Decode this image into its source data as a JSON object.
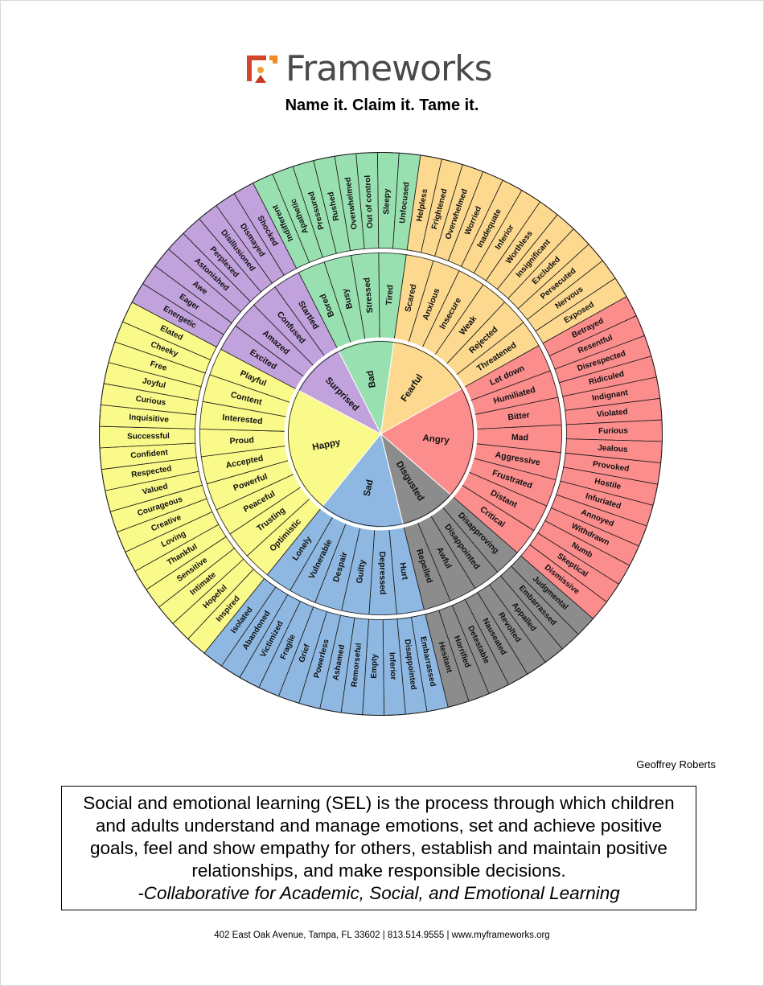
{
  "brand": {
    "name": "Frameworks",
    "tagline": "Name it. Claim it. Tame it."
  },
  "wheel": {
    "core_sectors": [
      {
        "label": "Bad",
        "color": "#99e0b1",
        "mid": [
          {
            "label": "Bored",
            "outer": [
              "Indifferent",
              "Apathetic"
            ]
          },
          {
            "label": "Busy",
            "outer": [
              "Pressured",
              "Rushed"
            ]
          },
          {
            "label": "Stressed",
            "outer": [
              "Overwhelmed",
              "Out of control"
            ]
          },
          {
            "label": "Tired",
            "outer": [
              "Sleepy",
              "Unfocused"
            ]
          }
        ]
      },
      {
        "label": "Fearful",
        "color": "#fcd98f",
        "mid": [
          {
            "label": "Scared",
            "outer": [
              "Helpless",
              "Frightened"
            ]
          },
          {
            "label": "Anxious",
            "outer": [
              "Overwhelmed",
              "Worried"
            ]
          },
          {
            "label": "Insecure",
            "outer": [
              "Inadequate",
              "Inferior"
            ]
          },
          {
            "label": "Weak",
            "outer": [
              "Worthless",
              "Insignificant"
            ]
          },
          {
            "label": "Rejected",
            "outer": [
              "Excluded",
              "Persecuted"
            ]
          },
          {
            "label": "Threatened",
            "outer": [
              "Nervous",
              "Exposed"
            ]
          }
        ]
      },
      {
        "label": "Angry",
        "color": "#fb8d8d",
        "mid": [
          {
            "label": "Let down",
            "outer": [
              "Betrayed",
              "Resentful"
            ]
          },
          {
            "label": "Humiliated",
            "outer": [
              "Disrespected",
              "Ridiculed"
            ]
          },
          {
            "label": "Bitter",
            "outer": [
              "Indignant",
              "Violated"
            ]
          },
          {
            "label": "Mad",
            "outer": [
              "Furious",
              "Jealous"
            ]
          },
          {
            "label": "Aggressive",
            "outer": [
              "Provoked",
              "Hostile"
            ]
          },
          {
            "label": "Frustrated",
            "outer": [
              "Infuriated",
              "Annoyed"
            ]
          },
          {
            "label": "Distant",
            "outer": [
              "Withdrawn",
              "Numb"
            ]
          },
          {
            "label": "Critical",
            "outer": [
              "Skeptical",
              "Dismissive"
            ]
          }
        ]
      },
      {
        "label": "Disgusted",
        "color": "#8c8c8c",
        "mid": [
          {
            "label": "Disapproving",
            "outer": [
              "Judgmental",
              "Embarrassed"
            ]
          },
          {
            "label": "Disappointed",
            "outer": [
              "Appalled",
              "Revolted"
            ]
          },
          {
            "label": "Awful",
            "outer": [
              "Nauseated",
              "Detestable"
            ]
          },
          {
            "label": "Repelled",
            "outer": [
              "Horrified",
              "Hesitant"
            ]
          }
        ]
      },
      {
        "label": "Sad",
        "color": "#8eb8e2",
        "mid": [
          {
            "label": "Hurt",
            "outer": [
              "Embarrassed",
              "Disappointed"
            ]
          },
          {
            "label": "Depressed",
            "outer": [
              "Inferior",
              "Empty"
            ]
          },
          {
            "label": "Guilty",
            "outer": [
              "Remorseful",
              "Ashamed"
            ]
          },
          {
            "label": "Despair",
            "outer": [
              "Powerless",
              "Grief"
            ]
          },
          {
            "label": "Vulnerable",
            "outer": [
              "Fragile",
              "Victimized"
            ]
          },
          {
            "label": "Lonely",
            "outer": [
              "Abandoned",
              "Isolated"
            ]
          }
        ]
      },
      {
        "label": "Happy",
        "color": "#fafa8a",
        "mid": [
          {
            "label": "Optimistic",
            "outer": [
              "Inspired",
              "Hopeful"
            ]
          },
          {
            "label": "Trusting",
            "outer": [
              "Intimate",
              "Sensitive"
            ]
          },
          {
            "label": "Peaceful",
            "outer": [
              "Thankful",
              "Loving"
            ]
          },
          {
            "label": "Powerful",
            "outer": [
              "Creative",
              "Courageous"
            ]
          },
          {
            "label": "Accepted",
            "outer": [
              "Valued",
              "Respected"
            ]
          },
          {
            "label": "Proud",
            "outer": [
              "Confident",
              "Successful"
            ]
          },
          {
            "label": "Interested",
            "outer": [
              "Inquisitive",
              "Curious"
            ]
          },
          {
            "label": "Content",
            "outer": [
              "Joyful",
              "Free"
            ]
          },
          {
            "label": "Playful",
            "outer": [
              "Cheeky",
              "Elated"
            ]
          }
        ]
      },
      {
        "label": "Surprised",
        "color": "#c1a2dc",
        "mid": [
          {
            "label": "Excited",
            "outer": [
              "Energetic",
              "Eager"
            ]
          },
          {
            "label": "Amazed",
            "outer": [
              "Awe",
              "Astonished"
            ]
          },
          {
            "label": "Confused",
            "outer": [
              "Perplexed",
              "Disillusioned"
            ]
          },
          {
            "label": "Startled",
            "outer": [
              "Dismayed",
              "Shocked"
            ]
          }
        ]
      }
    ]
  },
  "author": "Geoffrey Roberts",
  "quote": {
    "text": "Social and emotional learning (SEL) is the process through which children and adults understand and manage emotions, set and achieve positive goals, feel and show empathy for others, establish and maintain positive relationships, and make responsible decisions.",
    "source": "-Collaborative for Academic, Social, and Emotional Learning"
  },
  "footer": "402 East Oak Avenue, Tampa, FL 33602 | 813.514.9555 | www.myframeworks.org"
}
